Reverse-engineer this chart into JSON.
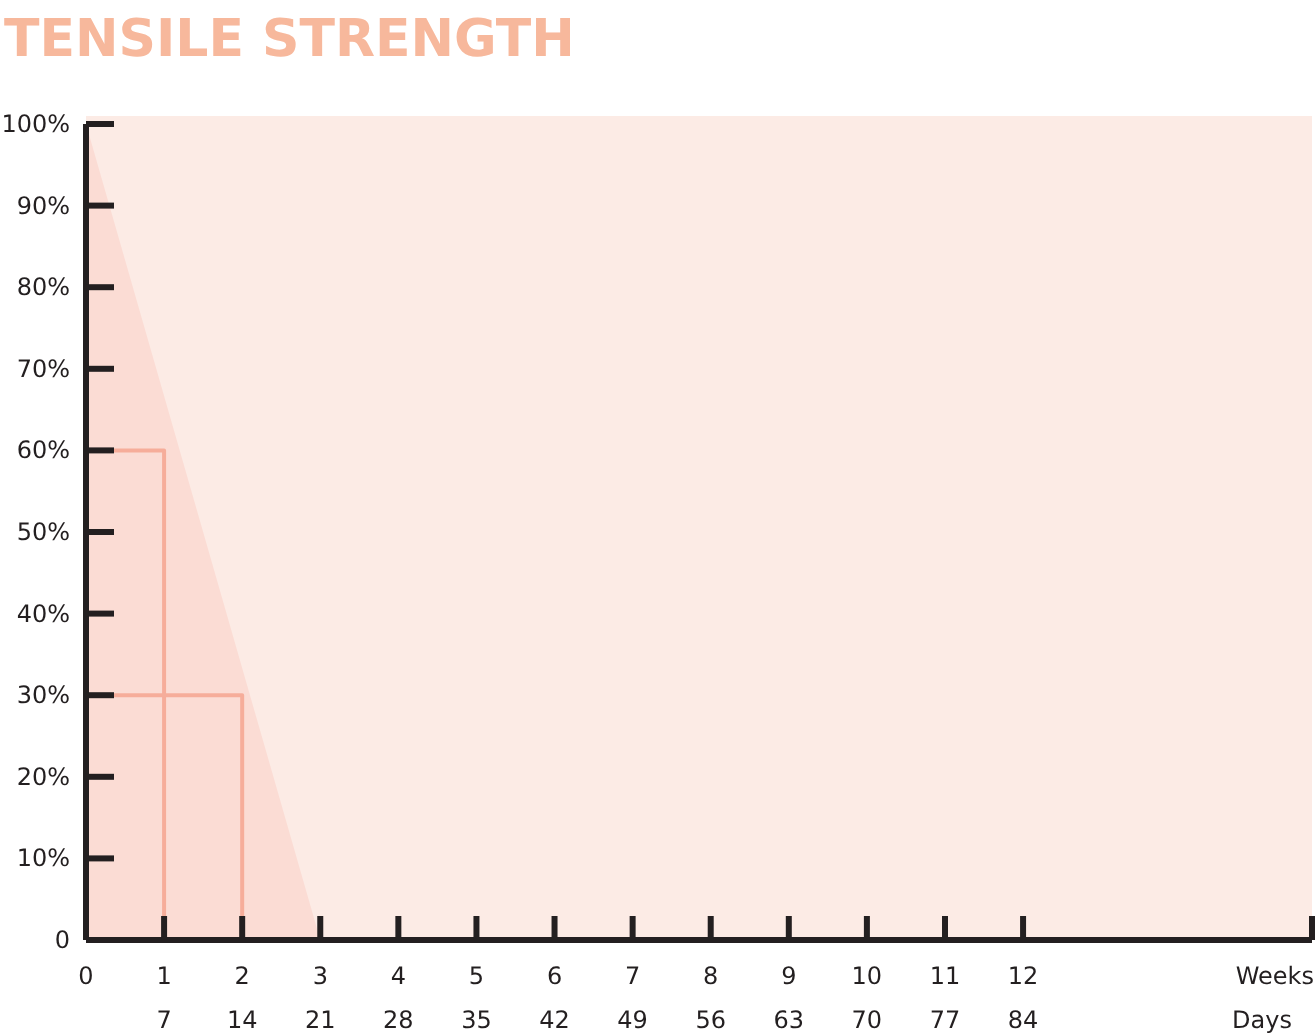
{
  "chart_data": {
    "type": "area",
    "title": "TENSILE STRENGTH",
    "xlabel": "Weeks",
    "x2label": "Days",
    "xlim": [
      0,
      15.7
    ],
    "xticks": [
      0,
      1,
      2,
      3,
      4,
      5,
      6,
      7,
      8,
      9,
      10,
      11,
      12,
      {
        "value": 15.7,
        "label": null
      }
    ],
    "x2lim": [
      0,
      109.9
    ],
    "x2ticks": [
      7,
      14,
      21,
      28,
      35,
      42,
      49,
      56,
      63,
      70,
      77,
      84
    ],
    "ylim": [
      0,
      100
    ],
    "yticks": [
      {
        "value": 0,
        "label": "0"
      },
      {
        "value": 10,
        "label": "10%"
      },
      {
        "value": 20,
        "label": "20%"
      },
      {
        "value": 30,
        "label": "30%"
      },
      {
        "value": 40,
        "label": "40%"
      },
      {
        "value": 50,
        "label": "50%"
      },
      {
        "value": 60,
        "label": "60%"
      },
      {
        "value": 70,
        "label": "70%"
      },
      {
        "value": 80,
        "label": "80%"
      },
      {
        "value": 90,
        "label": "90%"
      },
      {
        "value": 100,
        "label": "100%"
      }
    ],
    "grid": false,
    "series": [
      {
        "color": "#fbdcd4",
        "x": [
          0,
          3
        ],
        "values": [
          100,
          0
        ]
      },
      {
        "type": "line",
        "color": "#f6ad9a",
        "x": [
          0,
          1,
          1
        ],
        "values": [
          60,
          60,
          0
        ]
      },
      {
        "type": "line",
        "color": "#f6ad9a",
        "x": [
          0,
          2,
          2
        ],
        "values": [
          30,
          30,
          0
        ]
      }
    ]
  }
}
